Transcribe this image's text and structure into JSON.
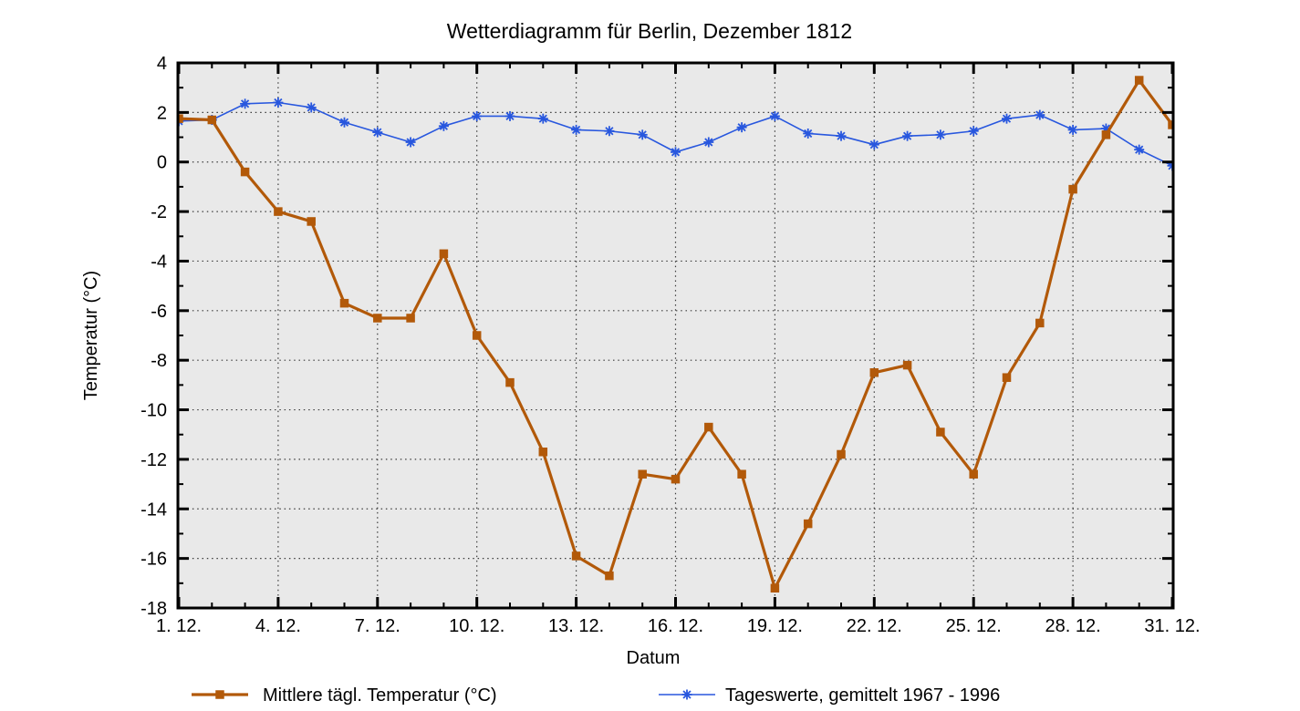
{
  "title": "Wetterdiagramm für Berlin, Dezember 1812",
  "y_axis_label": "Temperatur (°C)",
  "x_axis_label": "Datum",
  "colors": {
    "background": "#ffffff",
    "plot_background": "#e9e9e9",
    "grid": "#3c3c3c",
    "axis": "#000000",
    "series_1812": "#b25909",
    "series_avg": "#2857de"
  },
  "legend": {
    "items": [
      {
        "label": "Mittlere tägl. Temperatur (°C)",
        "marker": "square",
        "color": "#b25909"
      },
      {
        "label": "Tageswerte, gemittelt 1967 - 1996",
        "marker": "asterisk",
        "color": "#2857de"
      }
    ]
  },
  "chart_data": {
    "type": "line",
    "title": "Wetterdiagramm für Berlin, Dezember 1812",
    "xlabel": "Datum",
    "ylabel": "Temperatur (°C)",
    "ylim": [
      -18,
      4
    ],
    "y_tick_step": 2,
    "y_ticks": [
      4,
      2,
      0,
      -2,
      -4,
      -6,
      -8,
      -10,
      -12,
      -14,
      -16,
      -18
    ],
    "x": [
      1,
      2,
      3,
      4,
      5,
      6,
      7,
      8,
      9,
      10,
      11,
      12,
      13,
      14,
      15,
      16,
      17,
      18,
      19,
      20,
      21,
      22,
      23,
      24,
      25,
      26,
      27,
      28,
      29,
      30,
      31
    ],
    "x_ticks": [
      {
        "day": 1,
        "label": "1. 12."
      },
      {
        "day": 4,
        "label": "4. 12."
      },
      {
        "day": 7,
        "label": "7. 12."
      },
      {
        "day": 10,
        "label": "10. 12."
      },
      {
        "day": 13,
        "label": "13. 12."
      },
      {
        "day": 16,
        "label": "16. 12."
      },
      {
        "day": 19,
        "label": "19. 12."
      },
      {
        "day": 22,
        "label": "22. 12."
      },
      {
        "day": 25,
        "label": "25. 12."
      },
      {
        "day": 28,
        "label": "28. 12."
      },
      {
        "day": 31,
        "label": "31. 12."
      }
    ],
    "grid": true,
    "legend_position": "bottom",
    "series": [
      {
        "name": "Mittlere tägl. Temperatur (°C)",
        "color": "#b25909",
        "marker": "square",
        "values": [
          1.75,
          1.7,
          -0.4,
          -2.0,
          -2.4,
          -5.7,
          -6.3,
          -6.3,
          -3.7,
          -7.0,
          -8.9,
          -11.7,
          -15.9,
          -16.7,
          -12.6,
          -12.8,
          -10.7,
          -12.6,
          -17.2,
          -14.6,
          -11.8,
          -8.5,
          -8.2,
          -10.9,
          -12.6,
          -8.7,
          -6.5,
          -1.1,
          1.1,
          3.3,
          1.5
        ]
      },
      {
        "name": "Tageswerte, gemittelt 1967 - 1996",
        "color": "#2857de",
        "marker": "asterisk",
        "values": [
          1.65,
          1.7,
          2.35,
          2.4,
          2.2,
          1.6,
          1.2,
          0.8,
          1.45,
          1.85,
          1.85,
          1.75,
          1.3,
          1.25,
          1.1,
          0.4,
          0.8,
          1.4,
          1.85,
          1.15,
          1.05,
          0.7,
          1.05,
          1.1,
          1.25,
          1.75,
          1.9,
          1.3,
          1.35,
          0.5,
          -0.15
        ]
      }
    ]
  }
}
